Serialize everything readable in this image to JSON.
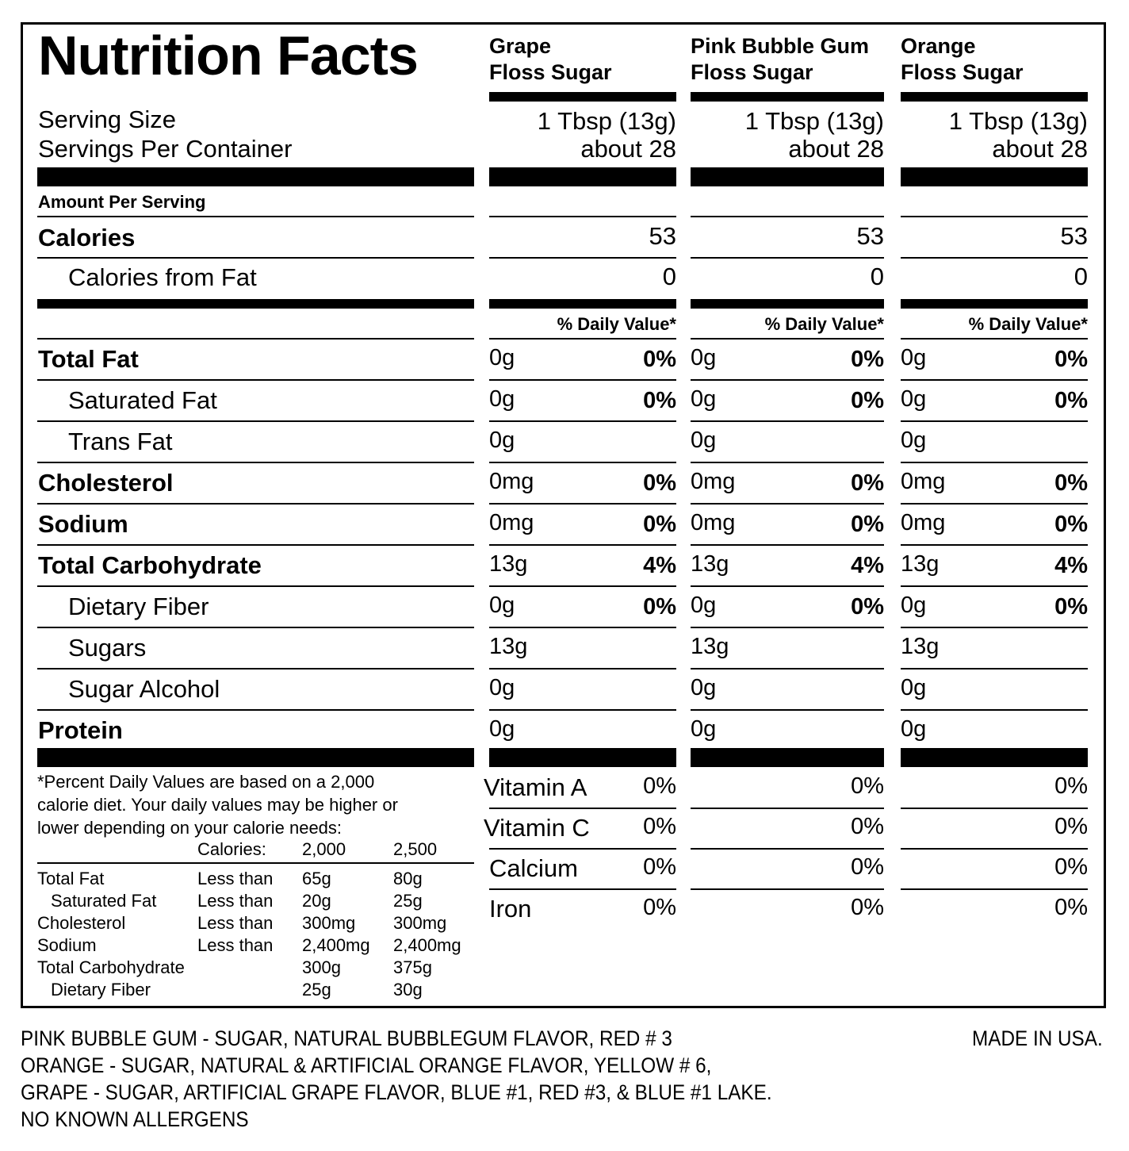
{
  "title": "Nutrition Facts",
  "columns": [
    {
      "name_line1": "Grape",
      "name_line2": "Floss Sugar",
      "serving_size": "1 Tbsp (13g)",
      "servings": "about 28",
      "calories": "53",
      "calories_fat": "0"
    },
    {
      "name_line1": "Pink Bubble Gum",
      "name_line2": "Floss Sugar",
      "serving_size": "1 Tbsp (13g)",
      "servings": "about 28",
      "calories": "53",
      "calories_fat": "0"
    },
    {
      "name_line1": "Orange",
      "name_line2": "Floss Sugar",
      "serving_size": "1 Tbsp (13g)",
      "servings": "about 28",
      "calories": "53",
      "calories_fat": "0"
    }
  ],
  "labels": {
    "serving_size": "Serving Size",
    "servings_per_container": "Servings Per Container",
    "amount_per_serving": "Amount Per Serving",
    "calories": "Calories",
    "calories_from_fat": "Calories from Fat",
    "daily_value": "% Daily Value*"
  },
  "nutrients": [
    {
      "label": "Total Fat",
      "bold": true,
      "amount": "0g",
      "dv": "0%"
    },
    {
      "label": "Saturated Fat",
      "bold": false,
      "amount": "0g",
      "dv": "0%"
    },
    {
      "label": "Trans Fat",
      "bold": false,
      "amount": "0g",
      "dv": ""
    },
    {
      "label": "Cholesterol",
      "bold": true,
      "amount": "0mg",
      "dv": "0%"
    },
    {
      "label": "Sodium",
      "bold": true,
      "amount": "0mg",
      "dv": "0%"
    },
    {
      "label": "Total Carbohydrate",
      "bold": true,
      "amount": "13g",
      "dv": "4%"
    },
    {
      "label": "Dietary Fiber",
      "bold": false,
      "amount": "0g",
      "dv": "0%"
    },
    {
      "label": "Sugars",
      "bold": false,
      "amount": "13g",
      "dv": ""
    },
    {
      "label": "Sugar Alcohol",
      "bold": false,
      "amount": "0g",
      "dv": ""
    },
    {
      "label": "Protein",
      "bold": true,
      "amount": "0g",
      "dv": ""
    }
  ],
  "vitamins": [
    {
      "label": "Vitamin A",
      "value": "0%"
    },
    {
      "label": "Vitamin C",
      "value": "0%"
    },
    {
      "label": "Calcium",
      "value": "0%"
    },
    {
      "label": "Iron",
      "value": "0%"
    }
  ],
  "footnote": {
    "lines": [
      "*Percent Daily Values are based on a 2,000",
      "calorie diet. Your daily values may be higher or",
      "lower depending on your calorie needs:"
    ],
    "header": [
      "Calories:",
      "2,000",
      "2,500"
    ],
    "rows": [
      [
        "Total Fat",
        "Less than",
        "65g",
        "80g"
      ],
      [
        "Saturated Fat",
        "Less than",
        "20g",
        "25g"
      ],
      [
        "Cholesterol",
        "Less than",
        "300mg",
        "300mg"
      ],
      [
        "Sodium",
        "Less than",
        "2,400mg",
        "2,400mg"
      ],
      [
        "Total Carbohydrate",
        "",
        "300g",
        "375g"
      ],
      [
        "Dietary Fiber",
        "",
        "25g",
        "30g"
      ]
    ]
  },
  "ingredients": [
    "PINK BUBBLE GUM - SUGAR, NATURAL BUBBLEGUM FLAVOR, RED # 3",
    "ORANGE - SUGAR, NATURAL & ARTIFICIAL ORANGE FLAVOR, YELLOW # 6,",
    "GRAPE - SUGAR, ARTIFICIAL GRAPE FLAVOR, BLUE #1, RED #3, & BLUE #1 LAKE.",
    "NO KNOWN ALLERGENS"
  ],
  "made_in": "MADE IN USA."
}
